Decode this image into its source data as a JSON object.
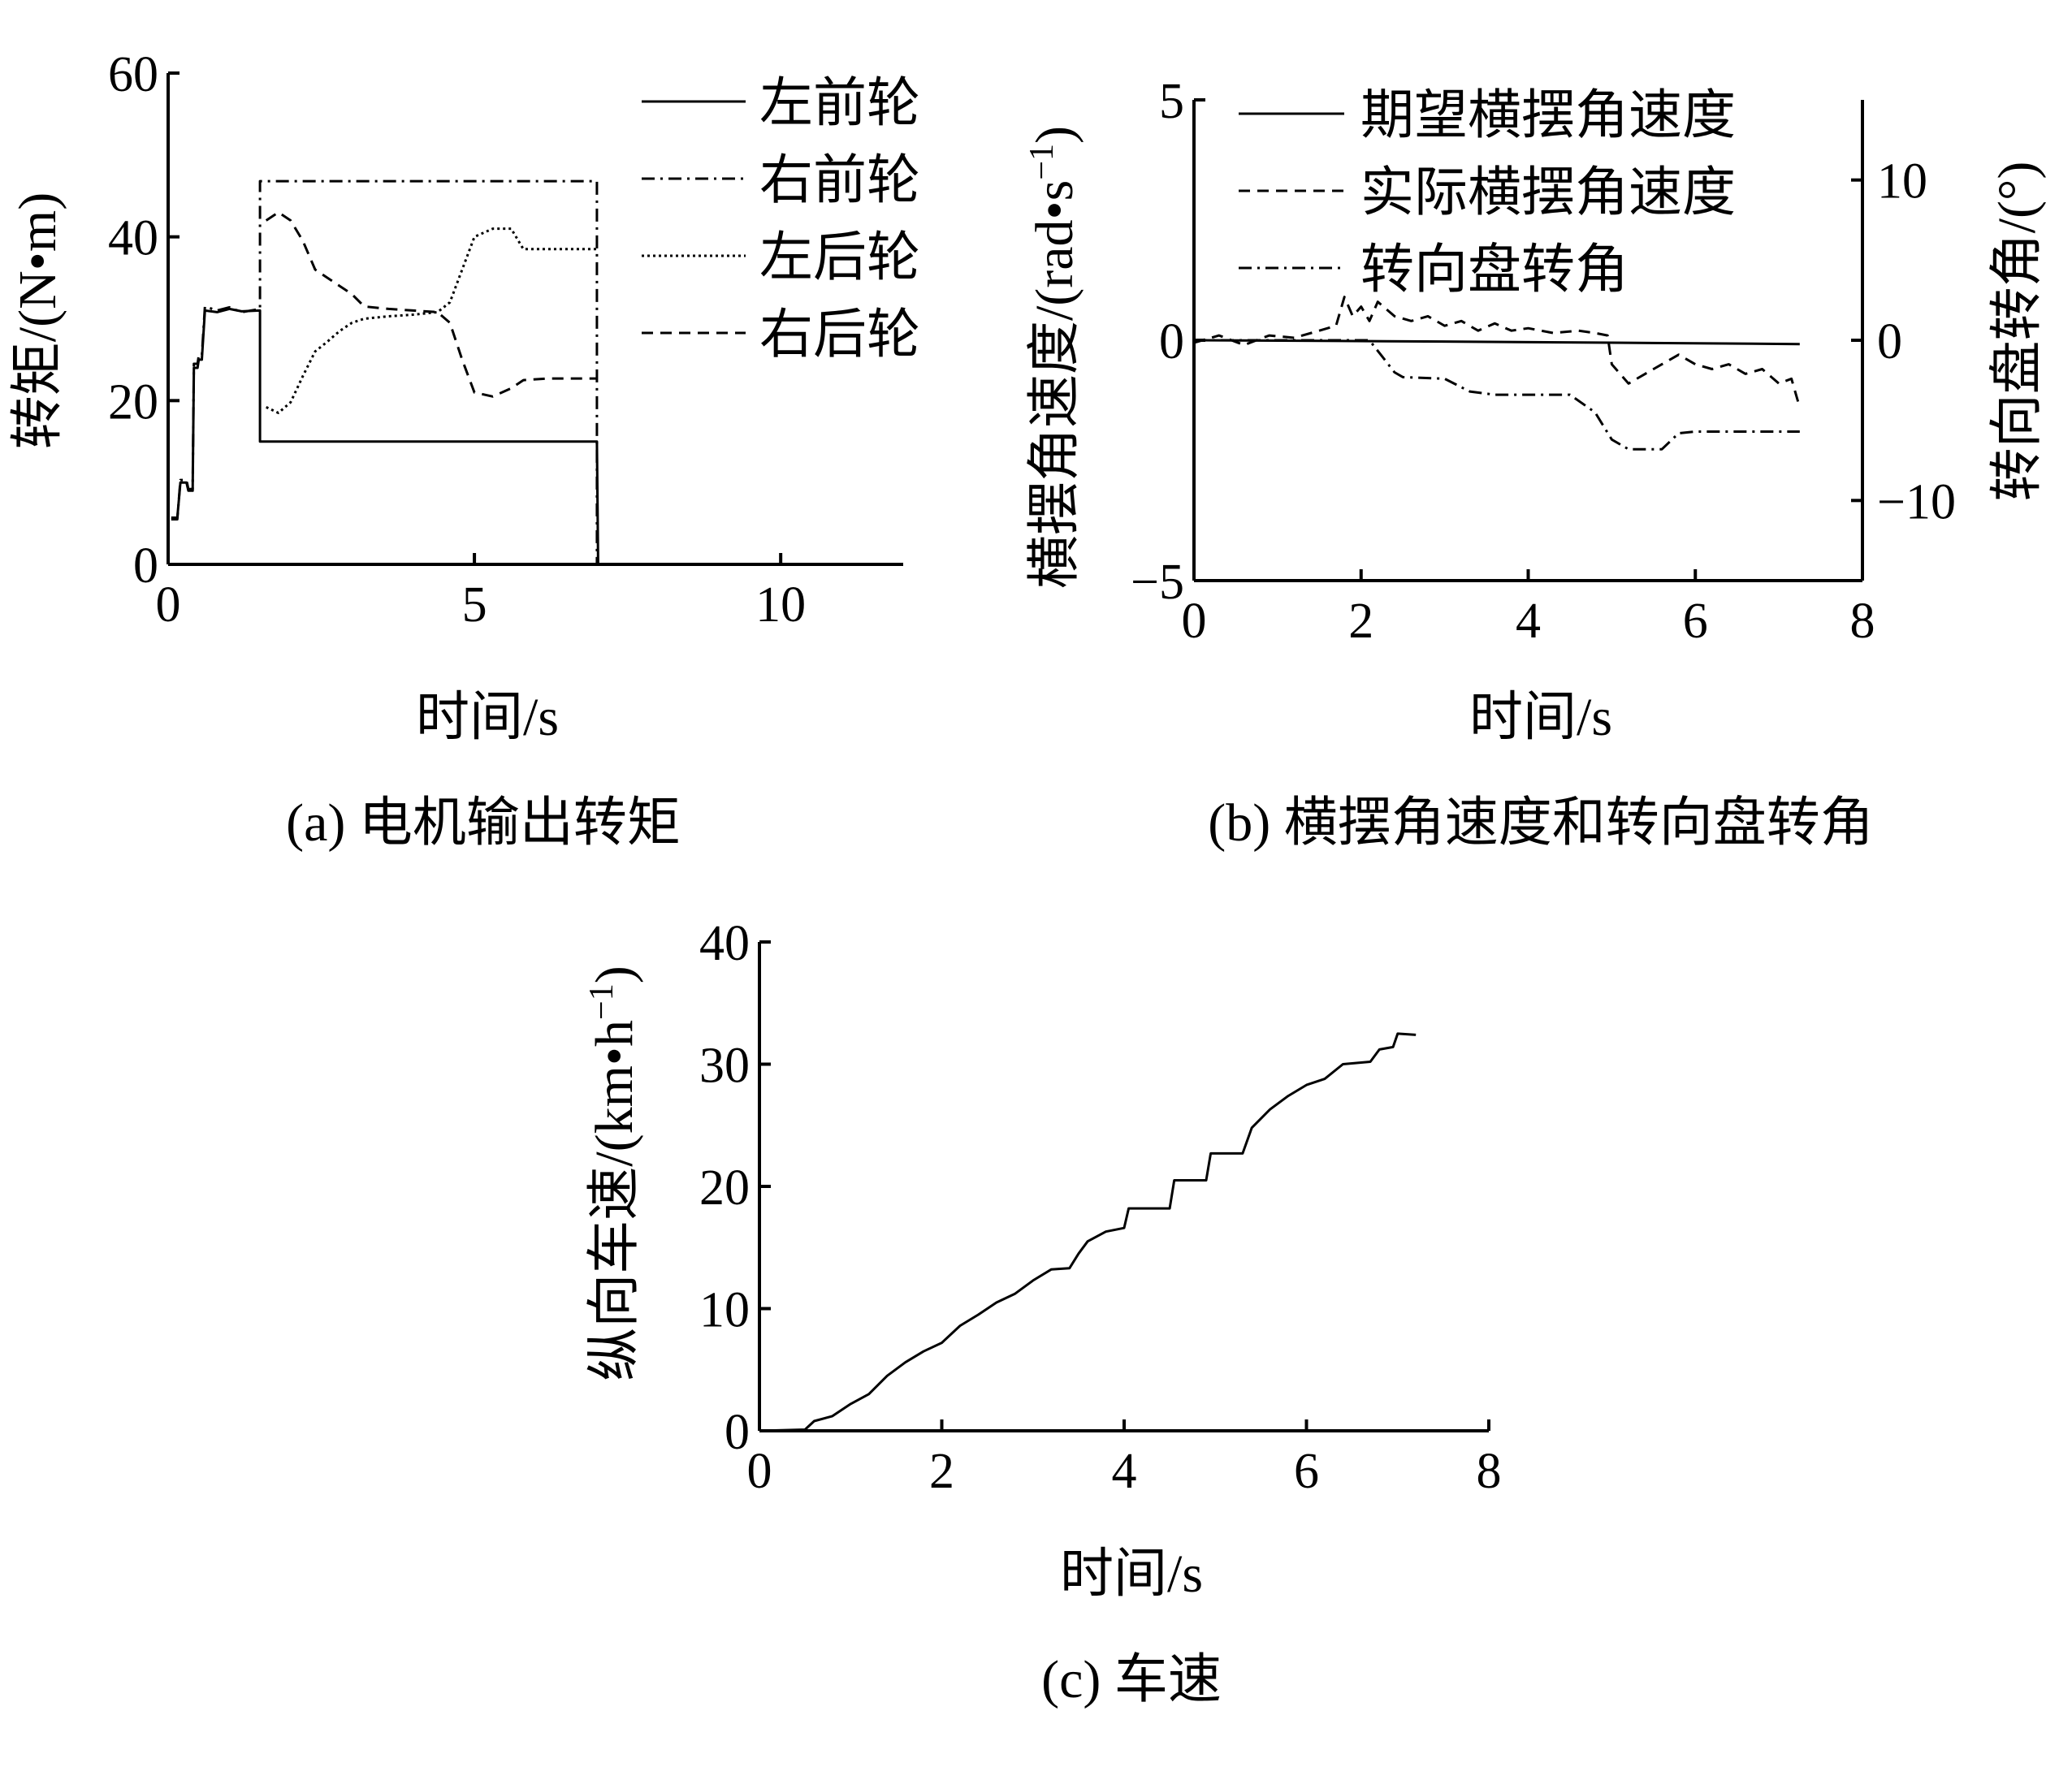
{
  "chart_data": [
    {
      "id": "a",
      "type": "line",
      "caption": "(a) 电机输出转矩",
      "xlabel": "时间/s",
      "ylabel": "转矩/(N•m)",
      "xlim": [
        0,
        12
      ],
      "ylim": [
        0,
        60
      ],
      "xticks": [
        0,
        5,
        10
      ],
      "yticks": [
        0,
        20,
        40,
        60
      ],
      "legend_position": "top-right",
      "series": [
        {
          "name": "左前轮",
          "style": "solid",
          "points": [
            [
              0.05,
              5.7
            ],
            [
              0.15,
              5.7
            ],
            [
              0.2,
              10
            ],
            [
              0.3,
              10
            ],
            [
              0.33,
              9
            ],
            [
              0.4,
              9
            ],
            [
              0.42,
              24
            ],
            [
              0.48,
              24
            ],
            [
              0.5,
              25
            ],
            [
              0.55,
              25
            ],
            [
              0.6,
              31
            ],
            [
              0.8,
              30.8
            ],
            [
              1.0,
              31.2
            ],
            [
              1.2,
              30.9
            ],
            [
              1.5,
              31
            ],
            [
              1.5,
              15
            ],
            [
              7.0,
              15
            ],
            [
              7.02,
              0
            ],
            [
              7.2,
              0
            ]
          ]
        },
        {
          "name": "右前轮",
          "style": "dashdot",
          "points": [
            [
              0.05,
              5.5
            ],
            [
              0.15,
              5.5
            ],
            [
              0.2,
              10.3
            ],
            [
              0.3,
              10.3
            ],
            [
              0.33,
              9.2
            ],
            [
              0.4,
              9.2
            ],
            [
              0.42,
              24.5
            ],
            [
              0.48,
              24.5
            ],
            [
              0.5,
              25.5
            ],
            [
              0.55,
              25.5
            ],
            [
              0.6,
              31.5
            ],
            [
              0.8,
              31
            ],
            [
              1.0,
              31.4
            ],
            [
              1.2,
              30.8
            ],
            [
              1.5,
              31.2
            ],
            [
              1.5,
              46.8
            ],
            [
              7.0,
              46.8
            ],
            [
              7.0,
              0
            ]
          ]
        },
        {
          "name": "左后轮",
          "style": "dotted",
          "points": [
            [
              1.6,
              19.2
            ],
            [
              1.8,
              18.5
            ],
            [
              2.0,
              19.8
            ],
            [
              2.2,
              23
            ],
            [
              2.4,
              26
            ],
            [
              2.6,
              27.2
            ],
            [
              2.8,
              28.5
            ],
            [
              3.0,
              29.5
            ],
            [
              3.2,
              30
            ],
            [
              3.6,
              30.3
            ],
            [
              4.0,
              30.5
            ],
            [
              4.4,
              30.8
            ],
            [
              4.6,
              32
            ],
            [
              4.8,
              36
            ],
            [
              5.0,
              40
            ],
            [
              5.3,
              41
            ],
            [
              5.6,
              41
            ],
            [
              5.8,
              38.5
            ],
            [
              6.2,
              38.5
            ],
            [
              7.0,
              38.5
            ]
          ]
        },
        {
          "name": "右后轮",
          "style": "dashed",
          "points": [
            [
              1.6,
              42
            ],
            [
              1.8,
              43
            ],
            [
              2.0,
              42
            ],
            [
              2.2,
              39.5
            ],
            [
              2.4,
              36
            ],
            [
              2.6,
              35
            ],
            [
              2.8,
              34
            ],
            [
              3.0,
              33
            ],
            [
              3.2,
              31.5
            ],
            [
              3.6,
              31.2
            ],
            [
              4.0,
              31
            ],
            [
              4.4,
              30.8
            ],
            [
              4.6,
              29.5
            ],
            [
              4.8,
              25
            ],
            [
              5.0,
              21
            ],
            [
              5.3,
              20.5
            ],
            [
              5.6,
              21.5
            ],
            [
              5.8,
              22.5
            ],
            [
              6.2,
              22.7
            ],
            [
              7.0,
              22.7
            ]
          ]
        }
      ]
    },
    {
      "id": "b",
      "type": "line",
      "caption": "(b) 横摆角速度和转向盘转角",
      "xlabel": "时间/s",
      "ylabel": "横摆角速度/(rad•s",
      "ylabel_sup": "−1",
      "ylabel_end": ")",
      "y2label": "转向盘转角/(°)",
      "xlim": [
        0,
        8
      ],
      "ylim": [
        -5,
        5
      ],
      "y2lim": [
        -15,
        15
      ],
      "xticks": [
        0,
        2,
        4,
        6,
        8
      ],
      "yticks": [
        -5,
        0,
        5
      ],
      "yticklabels": [
        "−5",
        "0",
        "5"
      ],
      "y2ticks": [
        -10,
        0,
        10
      ],
      "y2ticklabels": [
        "−10",
        "0",
        "10"
      ],
      "legend_position": "top",
      "series": [
        {
          "name": "期望横摆角速度",
          "style": "solid",
          "axis": "left",
          "points": [
            [
              0,
              0
            ],
            [
              2.3,
              -0.02
            ],
            [
              5,
              -0.05
            ],
            [
              7.25,
              -0.08
            ]
          ]
        },
        {
          "name": "实际横摆角速度",
          "style": "dashed",
          "axis": "left",
          "points": [
            [
              0,
              -0.05
            ],
            [
              0.3,
              0.1
            ],
            [
              0.6,
              -0.1
            ],
            [
              0.9,
              0.1
            ],
            [
              1.2,
              0.05
            ],
            [
              1.5,
              0.2
            ],
            [
              1.7,
              0.3
            ],
            [
              1.8,
              0.9
            ],
            [
              1.9,
              0.5
            ],
            [
              2.0,
              0.7
            ],
            [
              2.1,
              0.4
            ],
            [
              2.2,
              0.8
            ],
            [
              2.4,
              0.5
            ],
            [
              2.6,
              0.4
            ],
            [
              2.8,
              0.5
            ],
            [
              3.0,
              0.3
            ],
            [
              3.2,
              0.4
            ],
            [
              3.4,
              0.2
            ],
            [
              3.6,
              0.35
            ],
            [
              3.8,
              0.2
            ],
            [
              4.0,
              0.25
            ],
            [
              4.3,
              0.15
            ],
            [
              4.6,
              0.2
            ],
            [
              4.8,
              0.15
            ],
            [
              4.95,
              0.1
            ],
            [
              5.0,
              -0.5
            ],
            [
              5.2,
              -0.9
            ],
            [
              5.4,
              -0.7
            ],
            [
              5.6,
              -0.5
            ],
            [
              5.8,
              -0.3
            ],
            [
              6.0,
              -0.5
            ],
            [
              6.2,
              -0.6
            ],
            [
              6.4,
              -0.5
            ],
            [
              6.6,
              -0.7
            ],
            [
              6.8,
              -0.6
            ],
            [
              7.0,
              -0.9
            ],
            [
              7.15,
              -0.8
            ],
            [
              7.25,
              -1.4
            ]
          ]
        },
        {
          "name": "转向盘转角",
          "style": "dashdot",
          "axis": "right",
          "points": [
            [
              0,
              0
            ],
            [
              2.1,
              0
            ],
            [
              2.25,
              -1
            ],
            [
              2.4,
              -2
            ],
            [
              2.5,
              -2.3
            ],
            [
              3.0,
              -2.4
            ],
            [
              3.3,
              -3.2
            ],
            [
              3.6,
              -3.4
            ],
            [
              4.5,
              -3.4
            ],
            [
              4.8,
              -4.5
            ],
            [
              5.0,
              -6.2
            ],
            [
              5.2,
              -6.8
            ],
            [
              5.6,
              -6.8
            ],
            [
              5.8,
              -5.8
            ],
            [
              6.0,
              -5.7
            ],
            [
              7.25,
              -5.7
            ]
          ]
        }
      ]
    },
    {
      "id": "c",
      "type": "line",
      "caption": "(c) 车速",
      "xlabel": "时间/s",
      "ylabel": "纵向车速/(km•h",
      "ylabel_sup": "−1",
      "ylabel_end": ")",
      "xlim": [
        0,
        8
      ],
      "ylim": [
        0,
        40
      ],
      "xticks": [
        0,
        2,
        4,
        6,
        8
      ],
      "yticks": [
        0,
        10,
        20,
        30,
        40
      ],
      "series": [
        {
          "style": "solid",
          "points": [
            [
              0,
              0
            ],
            [
              0.5,
              0.1
            ],
            [
              0.6,
              0.8
            ],
            [
              0.8,
              1.2
            ],
            [
              1.0,
              2.2
            ],
            [
              1.2,
              3.0
            ],
            [
              1.4,
              4.5
            ],
            [
              1.6,
              5.6
            ],
            [
              1.8,
              6.5
            ],
            [
              2.0,
              7.2
            ],
            [
              2.2,
              8.6
            ],
            [
              2.4,
              9.5
            ],
            [
              2.6,
              10.5
            ],
            [
              2.8,
              11.2
            ],
            [
              3.0,
              12.3
            ],
            [
              3.2,
              13.2
            ],
            [
              3.4,
              13.3
            ],
            [
              3.5,
              14.5
            ],
            [
              3.6,
              15.5
            ],
            [
              3.8,
              16.3
            ],
            [
              4.0,
              16.6
            ],
            [
              4.05,
              18.2
            ],
            [
              4.5,
              18.2
            ],
            [
              4.55,
              20.5
            ],
            [
              4.9,
              20.5
            ],
            [
              4.95,
              22.7
            ],
            [
              5.3,
              22.7
            ],
            [
              5.4,
              24.8
            ],
            [
              5.6,
              26.3
            ],
            [
              5.8,
              27.4
            ],
            [
              6.0,
              28.3
            ],
            [
              6.2,
              28.8
            ],
            [
              6.4,
              30.0
            ],
            [
              6.7,
              30.2
            ],
            [
              6.8,
              31.2
            ],
            [
              6.95,
              31.4
            ],
            [
              7.0,
              32.5
            ],
            [
              7.2,
              32.4
            ]
          ]
        }
      ]
    }
  ]
}
